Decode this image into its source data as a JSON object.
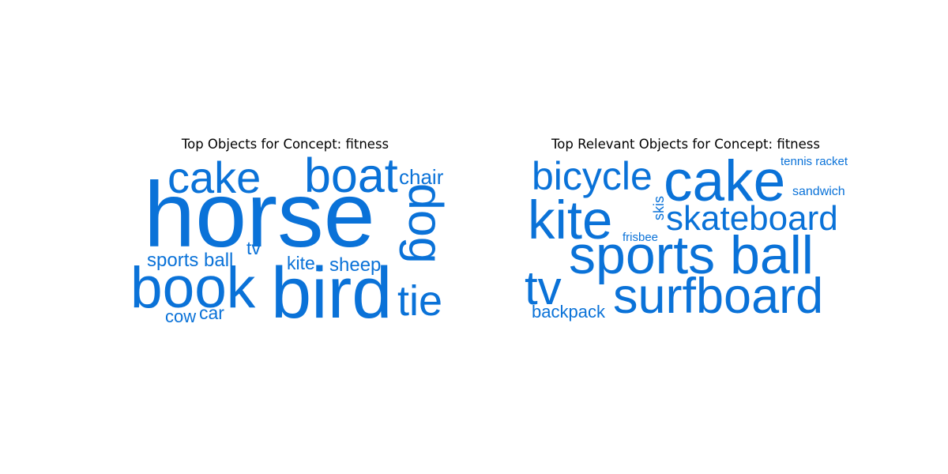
{
  "accent_color": "#0a72d8",
  "chart_data": [
    {
      "type": "wordcloud",
      "title": "Top Objects for Concept: fitness",
      "words": [
        {
          "text": "horse",
          "weight": 100
        },
        {
          "text": "bird",
          "weight": 78
        },
        {
          "text": "book",
          "weight": 62
        },
        {
          "text": "boat",
          "weight": 52
        },
        {
          "text": "dog",
          "weight": 50
        },
        {
          "text": "cake",
          "weight": 48
        },
        {
          "text": "tie",
          "weight": 46
        },
        {
          "text": "chair",
          "weight": 23
        },
        {
          "text": "sports ball",
          "weight": 22
        },
        {
          "text": "sheep",
          "weight": 22
        },
        {
          "text": "kite",
          "weight": 20
        },
        {
          "text": "car",
          "weight": 20
        },
        {
          "text": "tv",
          "weight": 20
        },
        {
          "text": "cow",
          "weight": 19
        },
        {
          "text": "·",
          "weight": 8
        }
      ]
    },
    {
      "type": "wordcloud",
      "title": "Top Relevant Objects for Concept: fitness",
      "words": [
        {
          "text": "sports ball",
          "weight": 100
        },
        {
          "text": "cake",
          "weight": 85
        },
        {
          "text": "surfboard",
          "weight": 80
        },
        {
          "text": "kite",
          "weight": 78
        },
        {
          "text": "tv",
          "weight": 72
        },
        {
          "text": "bicycle",
          "weight": 60
        },
        {
          "text": "skateboard",
          "weight": 52
        },
        {
          "text": "backpack",
          "weight": 28
        },
        {
          "text": "sandwich",
          "weight": 20
        },
        {
          "text": "tennis racket",
          "weight": 18
        },
        {
          "text": "skis",
          "weight": 18
        },
        {
          "text": "frisbee",
          "weight": 18
        }
      ]
    }
  ]
}
